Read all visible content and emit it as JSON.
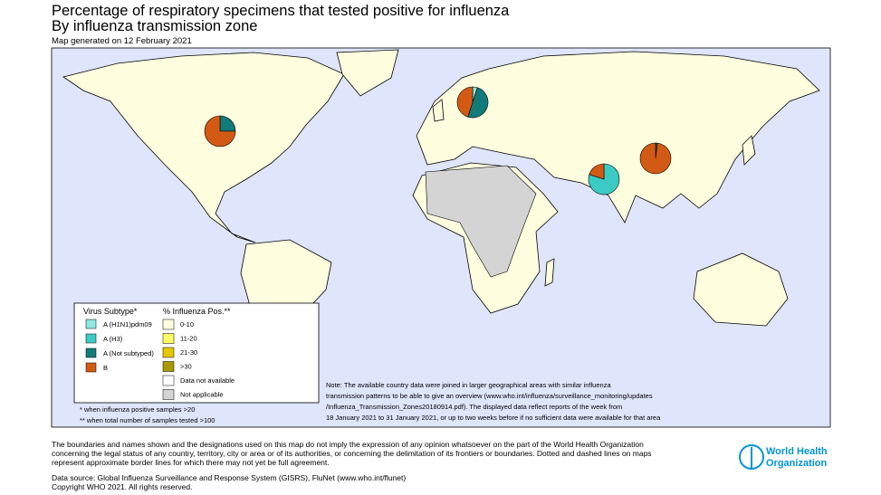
{
  "header": {
    "title": "Percentage of respiratory specimens that tested positive for influenza",
    "subtitle": "By influenza transmission zone",
    "generated": "Map generated on 12 February 2021"
  },
  "legend": {
    "subtype_title": "Virus Subtype*",
    "subtypes": [
      {
        "label": "A (H1N1)pdm09",
        "color": "#8ee8e0"
      },
      {
        "label": "A (H3)",
        "color": "#3ccac4"
      },
      {
        "label": "A (Not subtyped)",
        "color": "#137a7a"
      },
      {
        "label": "B",
        "color": "#d35a14"
      }
    ],
    "pos_title": "% Influenza Pos.**",
    "pos": [
      {
        "label": "0-10",
        "color": "#ffffe0"
      },
      {
        "label": "11-20",
        "color": "#ffff66"
      },
      {
        "label": "21-30",
        "color": "#e6c800"
      },
      {
        "label": ">30",
        "color": "#a89a00"
      },
      {
        "label": "Data not available",
        "color": "#ffffff"
      },
      {
        "label": "Not applicable",
        "color": "#d4d4d4"
      }
    ],
    "footnotes": [
      "* when influenza positive samples >20",
      "** when total number of samples tested >100"
    ]
  },
  "pies": [
    {
      "values": [
        0,
        0,
        25,
        75
      ]
    },
    {
      "values": [
        5,
        0,
        50,
        45
      ]
    },
    {
      "values": [
        0,
        80,
        0,
        20
      ]
    },
    {
      "values": [
        0,
        0,
        2,
        98
      ]
    }
  ],
  "note": [
    "Note: The available country data were joined in larger geographical areas with similar influenza",
    "transmission patterns to be able to give an overview (www.who.int/influenza/surveillance_monitoring/updates",
    "/Influenza_Transmission_Zones20180914.pdf). The displayed data reflect reports of the week from",
    "18 January 2021 to 31 January 2021, or up to two weeks before if no sufficient data were available for that area"
  ],
  "disclaimer": [
    "The boundaries and names shown and the designations used on this map do not imply the expression of any opinion whatsoever on the part of the World Health Organization",
    "concerning the legal status of any country, territory, city or area or of its authorities, or concerning the delimitation of its frontiers or boundaries. Dotted and dashed lines on maps",
    "represent approximate border lines for which there may not yet be full agreement."
  ],
  "source": "Data source: Global Influenza Surveillance and Response System (GISRS), FluNet (www.who.int/flunet)",
  "copyright": "Copyright WHO 2021. All rights reserved.",
  "logo": [
    "World Health",
    "Organization"
  ]
}
